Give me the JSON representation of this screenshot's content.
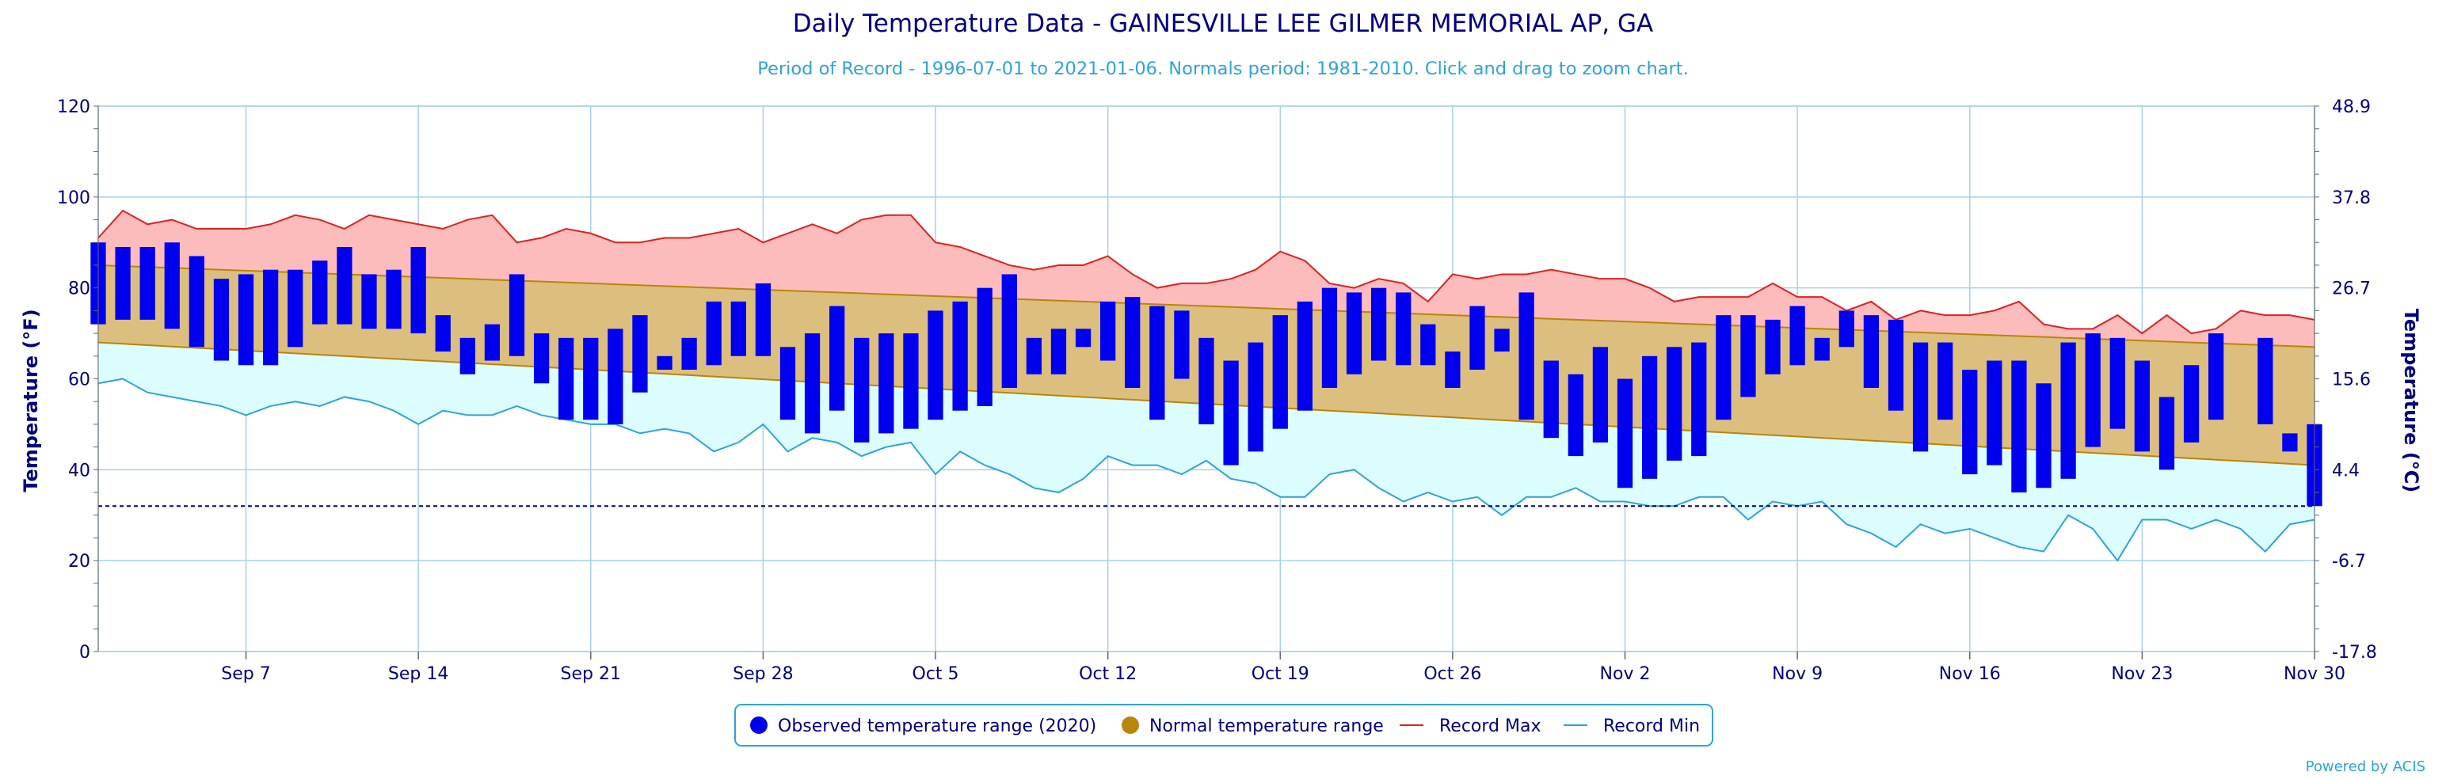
{
  "chart_data": {
    "type": "bar",
    "title": "Daily Temperature Data - GAINESVILLE LEE GILMER MEMORIAL AP, GA",
    "subtitle": "Period of Record - 1996-07-01 to 2021-01-06. Normals period: 1981-2010. Click and drag to zoom chart.",
    "ylabel": "Temperature (°F)",
    "y2label": "Temperature (°C)",
    "ylim": [
      0,
      120
    ],
    "y_ticks": [
      0,
      20,
      40,
      60,
      80,
      100,
      120
    ],
    "y2_ticks": [
      "-17.8",
      "-6.7",
      "4.4",
      "15.6",
      "26.7",
      "37.8",
      "48.9"
    ],
    "x_tick_labels": [
      "Sep 7",
      "Sep 14",
      "Sep 21",
      "Sep 28",
      "Oct 5",
      "Oct 12",
      "Oct 19",
      "Oct 26",
      "Nov 2",
      "Nov 9",
      "Nov 16",
      "Nov 23",
      "Nov 30"
    ],
    "freezing_line": 32,
    "grid": true,
    "legend_position": "bottom-center",
    "legend": [
      {
        "label": "Observed temperature range (2020)",
        "color": "#0000ee",
        "symbol": "circle"
      },
      {
        "label": "Normal temperature range",
        "color": "#b8860b",
        "symbol": "circle"
      },
      {
        "label": "Record Max",
        "color": "#e02020",
        "symbol": "line"
      },
      {
        "label": "Record Min",
        "color": "#2fa3d8",
        "symbol": "line"
      }
    ],
    "x_start": "Sep 1",
    "x_end": "Nov 30",
    "observed_2020": [
      [
        72,
        90
      ],
      [
        73,
        89
      ],
      [
        73,
        89
      ],
      [
        71,
        90
      ],
      [
        67,
        87
      ],
      [
        64,
        82
      ],
      [
        63,
        83
      ],
      [
        63,
        84
      ],
      [
        67,
        84
      ],
      [
        72,
        86
      ],
      [
        72,
        89
      ],
      [
        71,
        83
      ],
      [
        71,
        84
      ],
      [
        70,
        89
      ],
      [
        66,
        74
      ],
      [
        61,
        69
      ],
      [
        64,
        72
      ],
      [
        65,
        83
      ],
      [
        59,
        70
      ],
      [
        51,
        69
      ],
      [
        51,
        69
      ],
      [
        50,
        71
      ],
      [
        57,
        74
      ],
      [
        62,
        65
      ],
      [
        62,
        69
      ],
      [
        63,
        77
      ],
      [
        65,
        77
      ],
      [
        65,
        81
      ],
      [
        51,
        67
      ],
      [
        48,
        70
      ],
      [
        53,
        76
      ],
      [
        46,
        69
      ],
      [
        48,
        70
      ],
      [
        49,
        70
      ],
      [
        51,
        75
      ],
      [
        53,
        77
      ],
      [
        54,
        80
      ],
      [
        58,
        83
      ],
      [
        61,
        69
      ],
      [
        61,
        71
      ],
      [
        67,
        71
      ],
      [
        64,
        77
      ],
      [
        58,
        78
      ],
      [
        51,
        76
      ],
      [
        60,
        75
      ],
      [
        50,
        69
      ],
      [
        41,
        64
      ],
      [
        44,
        68
      ],
      [
        49,
        74
      ],
      [
        53,
        77
      ],
      [
        58,
        80
      ],
      [
        61,
        79
      ],
      [
        64,
        80
      ],
      [
        63,
        79
      ],
      [
        63,
        72
      ],
      [
        58,
        66
      ],
      [
        62,
        76
      ],
      [
        66,
        71
      ],
      [
        51,
        79
      ],
      [
        47,
        64
      ],
      [
        43,
        61
      ],
      [
        46,
        67
      ],
      [
        36,
        60
      ],
      [
        38,
        65
      ],
      [
        42,
        67
      ],
      [
        43,
        68
      ],
      [
        51,
        74
      ],
      [
        56,
        74
      ],
      [
        61,
        73
      ],
      [
        63,
        76
      ],
      [
        64,
        69
      ],
      [
        67,
        75
      ],
      [
        58,
        74
      ],
      [
        53,
        73
      ],
      [
        44,
        68
      ],
      [
        51,
        68
      ],
      [
        39,
        62
      ],
      [
        41,
        64
      ],
      [
        35,
        64
      ],
      [
        36,
        59
      ],
      [
        38,
        68
      ],
      [
        45,
        70
      ],
      [
        49,
        69
      ],
      [
        44,
        64
      ],
      [
        40,
        56
      ],
      [
        46,
        63
      ],
      [
        51,
        70
      ],
      [
        null,
        null
      ],
      [
        50,
        69
      ],
      [
        44,
        48
      ],
      [
        32,
        50
      ]
    ],
    "normal_max": [
      85.0,
      84.8,
      84.6,
      84.4,
      84.2,
      84.0,
      83.8,
      83.6,
      83.4,
      83.2,
      83.0,
      82.8,
      82.6,
      82.4,
      82.2,
      82.0,
      81.8,
      81.6,
      81.4,
      81.2,
      81.0,
      80.8,
      80.6,
      80.4,
      80.2,
      80.0,
      79.8,
      79.6,
      79.4,
      79.2,
      79.0,
      78.8,
      78.6,
      78.4,
      78.2,
      78.0,
      77.8,
      77.6,
      77.4,
      77.2,
      77.0,
      76.8,
      76.6,
      76.4,
      76.2,
      76.0,
      75.8,
      75.6,
      75.4,
      75.2,
      75.0,
      74.8,
      74.6,
      74.4,
      74.2,
      74.0,
      73.8,
      73.6,
      73.4,
      73.2,
      73.0,
      72.8,
      72.6,
      72.4,
      72.2,
      72.0,
      71.8,
      71.6,
      71.4,
      71.2,
      71.0,
      70.8,
      70.6,
      70.4,
      70.2,
      70.0,
      69.8,
      69.6,
      69.4,
      69.2,
      69.0,
      68.8,
      68.6,
      68.4,
      68.2,
      68.0,
      67.8,
      67.6,
      67.4,
      67.2,
      67.0
    ],
    "normal_min": [
      68.0,
      67.7,
      67.4,
      67.1,
      66.8,
      66.5,
      66.2,
      65.9,
      65.6,
      65.3,
      65.0,
      64.7,
      64.4,
      64.1,
      63.8,
      63.5,
      63.2,
      62.9,
      62.6,
      62.3,
      62.0,
      61.7,
      61.4,
      61.1,
      60.8,
      60.5,
      60.2,
      59.9,
      59.6,
      59.3,
      59.0,
      58.7,
      58.4,
      58.1,
      57.8,
      57.5,
      57.2,
      56.9,
      56.6,
      56.3,
      56.0,
      55.7,
      55.4,
      55.1,
      54.8,
      54.5,
      54.2,
      53.9,
      53.6,
      53.3,
      53.0,
      52.7,
      52.4,
      52.1,
      51.8,
      51.5,
      51.2,
      50.9,
      50.6,
      50.3,
      50.0,
      49.7,
      49.4,
      49.1,
      48.8,
      48.5,
      48.2,
      47.9,
      47.6,
      47.3,
      47.0,
      46.7,
      46.4,
      46.1,
      45.8,
      45.5,
      45.2,
      44.9,
      44.6,
      44.3,
      44.0,
      43.7,
      43.4,
      43.1,
      42.8,
      42.5,
      42.2,
      41.9,
      41.6,
      41.3,
      41.0
    ],
    "record_max": [
      91,
      97,
      94,
      95,
      93,
      93,
      93,
      94,
      96,
      95,
      93,
      96,
      95,
      94,
      93,
      95,
      96,
      90,
      91,
      93,
      92,
      90,
      90,
      91,
      91,
      92,
      93,
      90,
      92,
      94,
      92,
      95,
      96,
      96,
      90,
      89,
      87,
      85,
      84,
      85,
      85,
      87,
      83,
      80,
      81,
      81,
      82,
      84,
      88,
      86,
      81,
      80,
      82,
      81,
      77,
      83,
      82,
      83,
      83,
      84,
      83,
      82,
      82,
      80,
      77,
      78,
      78,
      78,
      81,
      78,
      78,
      75,
      77,
      73,
      75,
      74,
      74,
      75,
      77,
      72,
      71,
      71,
      74,
      70,
      74,
      70,
      71,
      75,
      74,
      74,
      73
    ],
    "record_min": [
      59,
      60,
      57,
      56,
      55,
      54,
      52,
      54,
      55,
      54,
      56,
      55,
      53,
      50,
      53,
      52,
      52,
      54,
      52,
      51,
      50,
      50,
      48,
      49,
      48,
      44,
      46,
      50,
      44,
      47,
      46,
      43,
      45,
      46,
      39,
      44,
      41,
      39,
      36,
      35,
      38,
      43,
      41,
      41,
      39,
      42,
      38,
      37,
      34,
      34,
      39,
      40,
      36,
      33,
      35,
      33,
      34,
      30,
      34,
      34,
      36,
      33,
      33,
      32,
      32,
      34,
      34,
      29,
      33,
      32,
      33,
      28,
      26,
      23,
      28,
      26,
      27,
      25,
      23,
      22,
      30,
      27,
      20,
      29,
      29,
      27,
      29,
      27,
      22,
      28,
      29
    ]
  }
}
